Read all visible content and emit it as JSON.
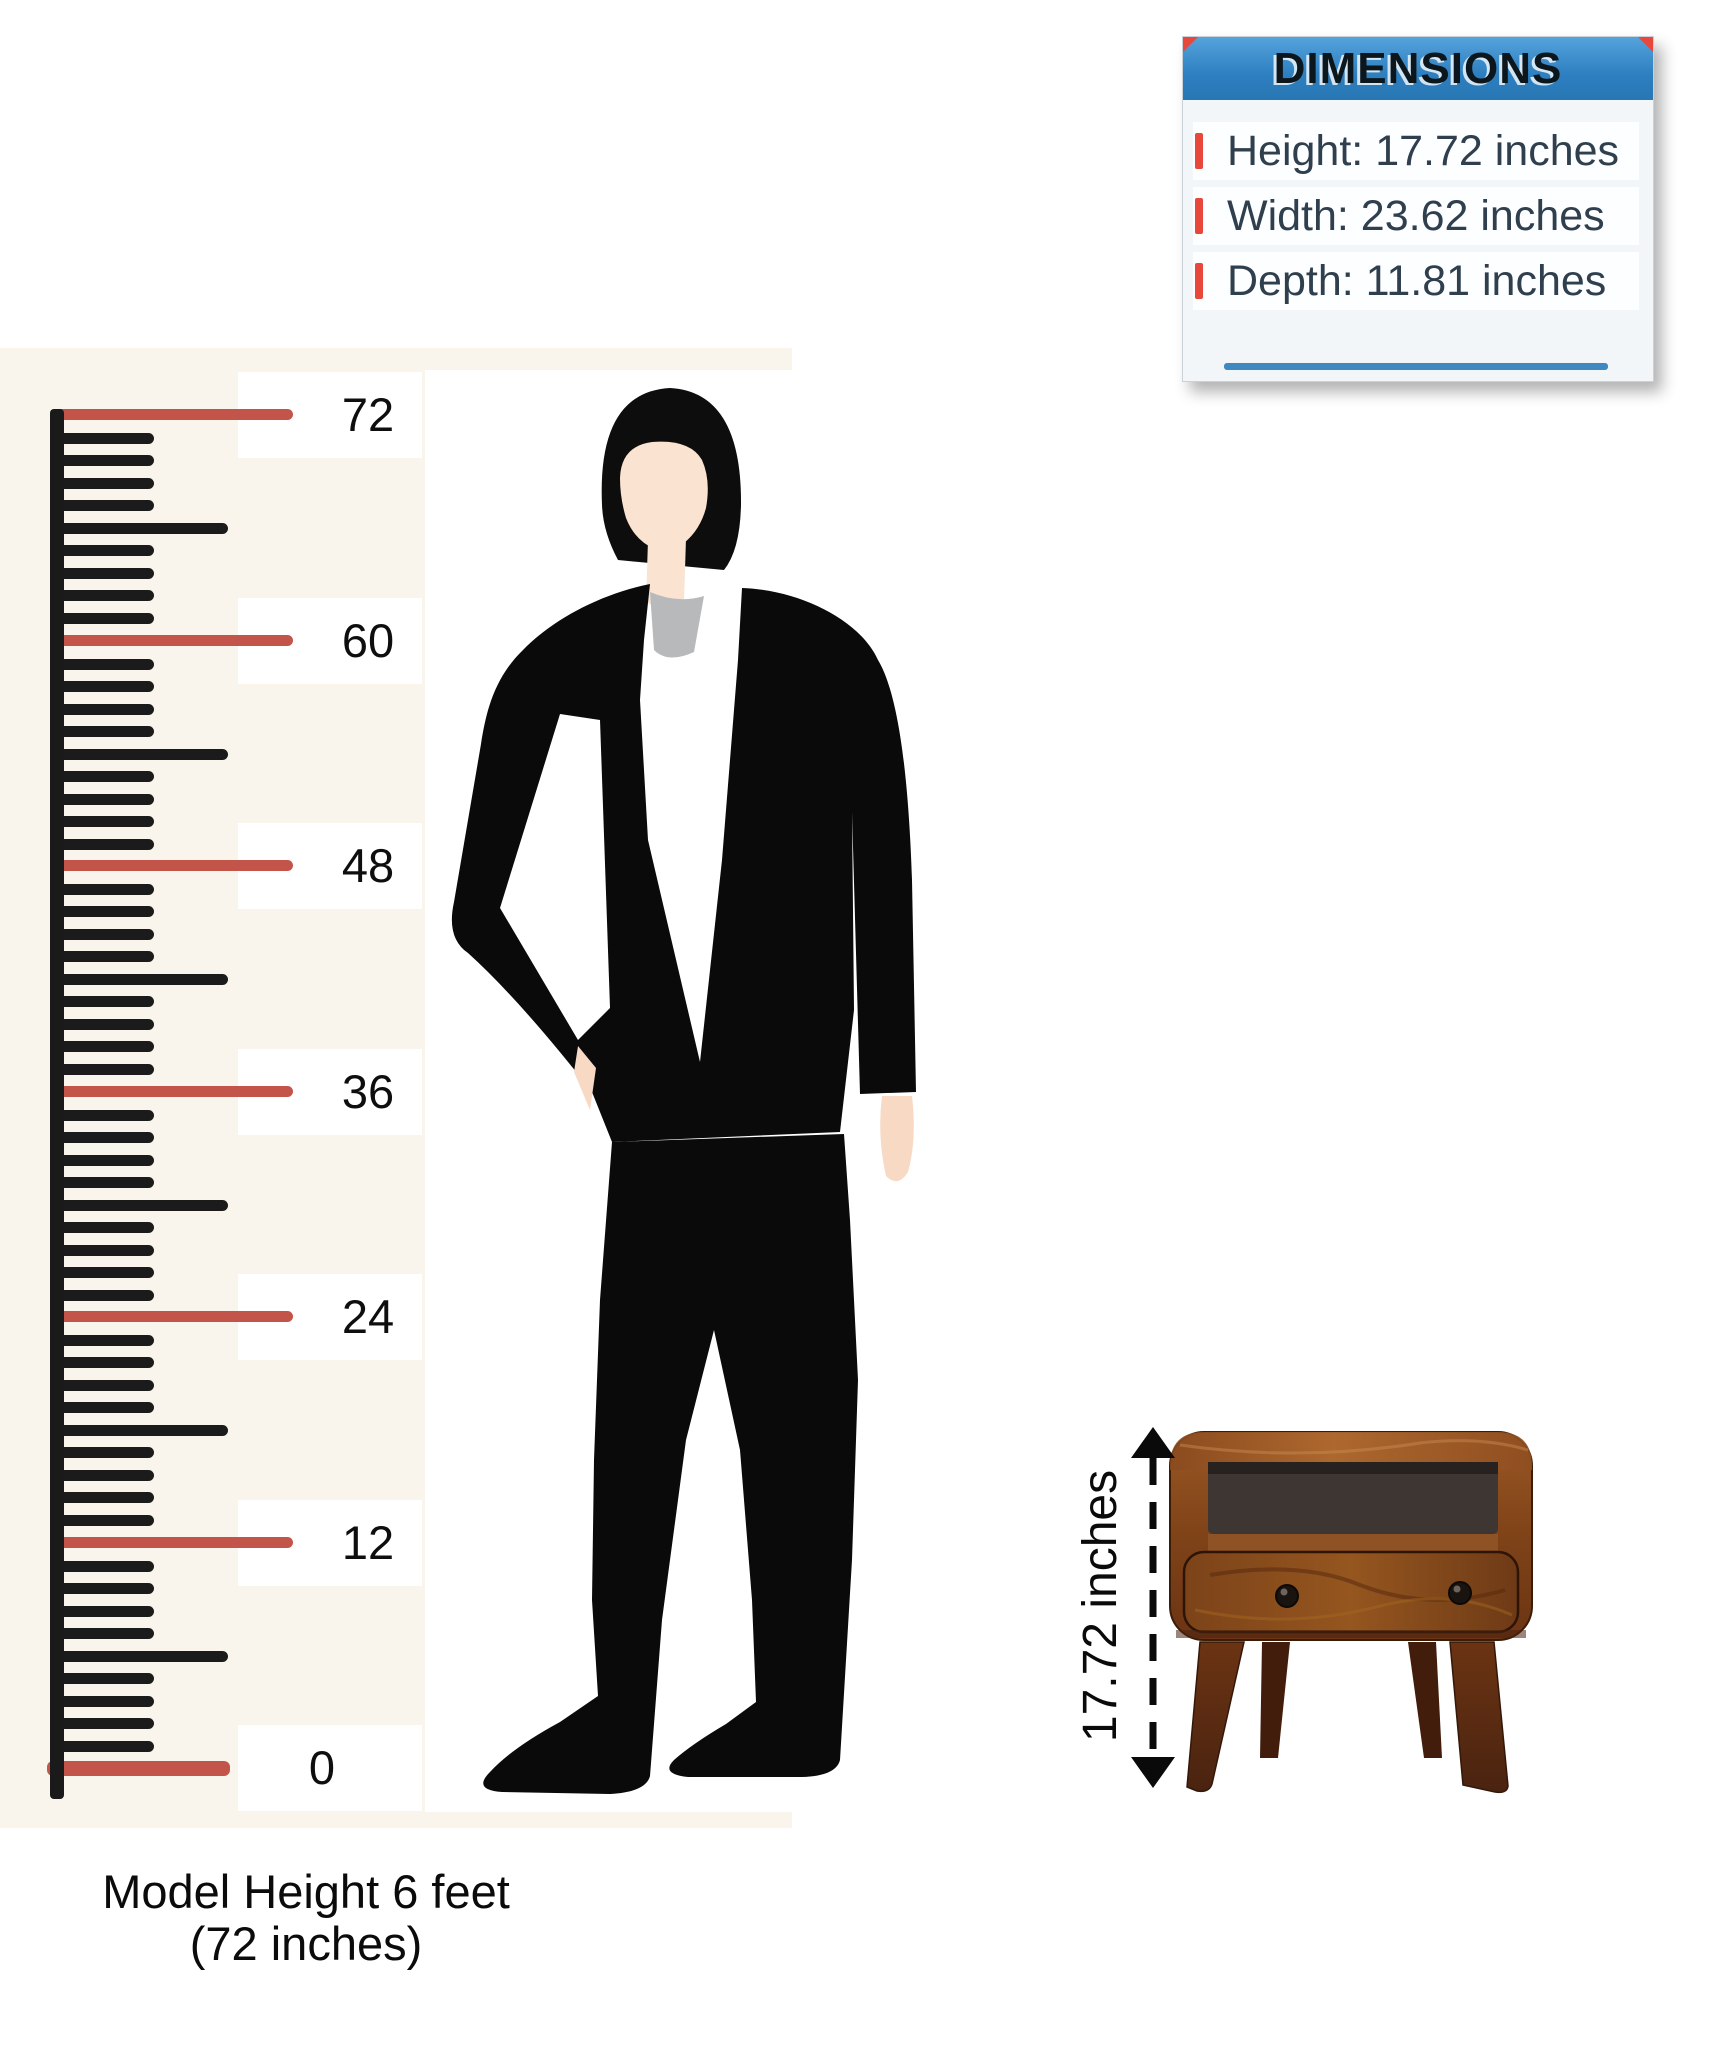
{
  "dimensions_box": {
    "title": "DIMENSIONS",
    "rows": [
      {
        "text": "Height: 17.72 inches"
      },
      {
        "text": "Width: 23.62 inches"
      },
      {
        "text": "Depth: 11.81 inches"
      }
    ]
  },
  "ruler": {
    "unit_labels": [
      "72",
      "60",
      "48",
      "36",
      "24",
      "12",
      "0"
    ]
  },
  "size_arrow": {
    "label": "17.72 inches"
  },
  "caption": {
    "line1": "Model Height 6 feet",
    "line2": "(72 inches)"
  },
  "colors": {
    "ruler_red": "#c3544a",
    "ruler_black": "#1b1b1b",
    "accent_red": "#e8483c",
    "header_blue": "#2d7fc0",
    "underline_blue": "#3e89c0",
    "dim_text": "#2f3f4d",
    "cream_background": "#f9f5ec",
    "wood_brown": "#8a4a1e",
    "wood_dark": "#5a2a10",
    "skin_tone": "#fbe3d2",
    "tie_gray": "#b8b9bb"
  }
}
